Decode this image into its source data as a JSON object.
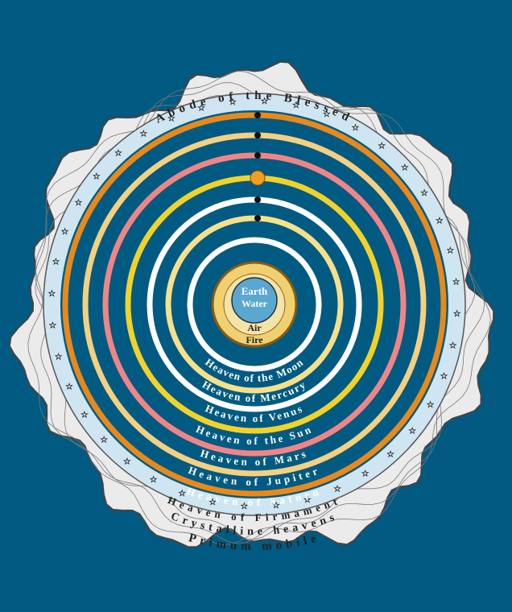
{
  "center": {
    "labels": [
      "Earth",
      "Water",
      "Air",
      "Fire"
    ]
  },
  "heavens": [
    "Heaven of the Moon",
    "Heaven of Mercury",
    "Heaven of Venus",
    "Heaven of the Sun",
    "Heaven of Mars",
    "Heaven of Jupiter",
    "Heaven of Saturn",
    "Heaven of Firmament"
  ],
  "outer": {
    "top": "Abode of the Blessed",
    "middle": "Crystalline heavens",
    "bottom": "Primum mobile"
  }
}
